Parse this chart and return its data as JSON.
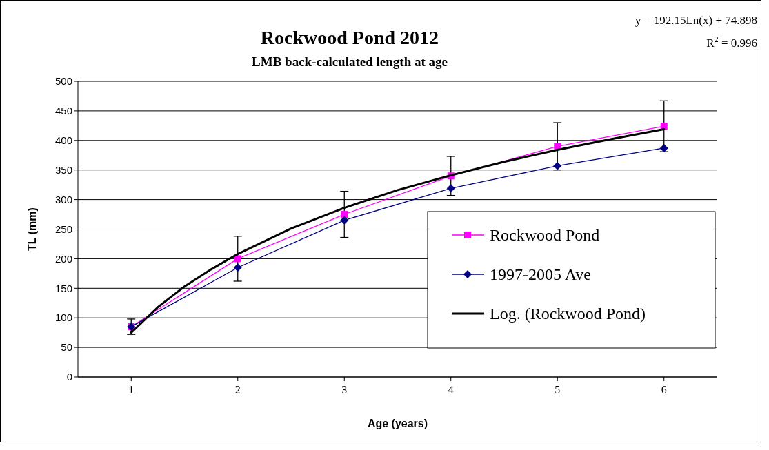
{
  "chart_data": {
    "type": "line",
    "title": "Rockwood Pond 2012",
    "subtitle": "LMB back-calculated length at age",
    "xlabel": "Age (years)",
    "ylabel": "TL (mm)",
    "annotations": [
      "y = 192.15Ln(x) + 74.898",
      "R$^{2}$ = 0.996"
    ],
    "x": [
      1,
      2,
      3,
      4,
      5,
      6
    ],
    "xlim": [
      0.5,
      6.5
    ],
    "xticks": [
      1,
      2,
      3,
      4,
      5,
      6
    ],
    "ylim": [
      0,
      500
    ],
    "yticks": [
      0,
      50,
      100,
      150,
      200,
      250,
      300,
      350,
      400,
      450,
      500
    ],
    "grid": "y",
    "legend": "bottom right",
    "series": [
      {
        "name": "Rockwood Pond",
        "color": "#ff00ff",
        "marker": "square",
        "values": [
          85,
          200,
          275,
          340,
          390,
          424
        ],
        "errors": [
          13,
          38,
          39,
          33,
          40,
          43
        ]
      },
      {
        "name": "1997-2005 Ave",
        "color": "#000080",
        "marker": "diamond",
        "values": [
          85,
          185,
          265,
          319,
          357,
          387
        ]
      },
      {
        "name": "Log. (Rockwood Pond)",
        "color": "#000000",
        "marker": "none",
        "x": [
          1,
          1.25,
          1.5,
          1.75,
          2,
          2.5,
          3,
          3.5,
          4,
          4.5,
          5,
          5.5,
          6
        ],
        "values": [
          75,
          118,
          153,
          182,
          208,
          251,
          286,
          316,
          341,
          364,
          384,
          402,
          419
        ]
      }
    ]
  }
}
